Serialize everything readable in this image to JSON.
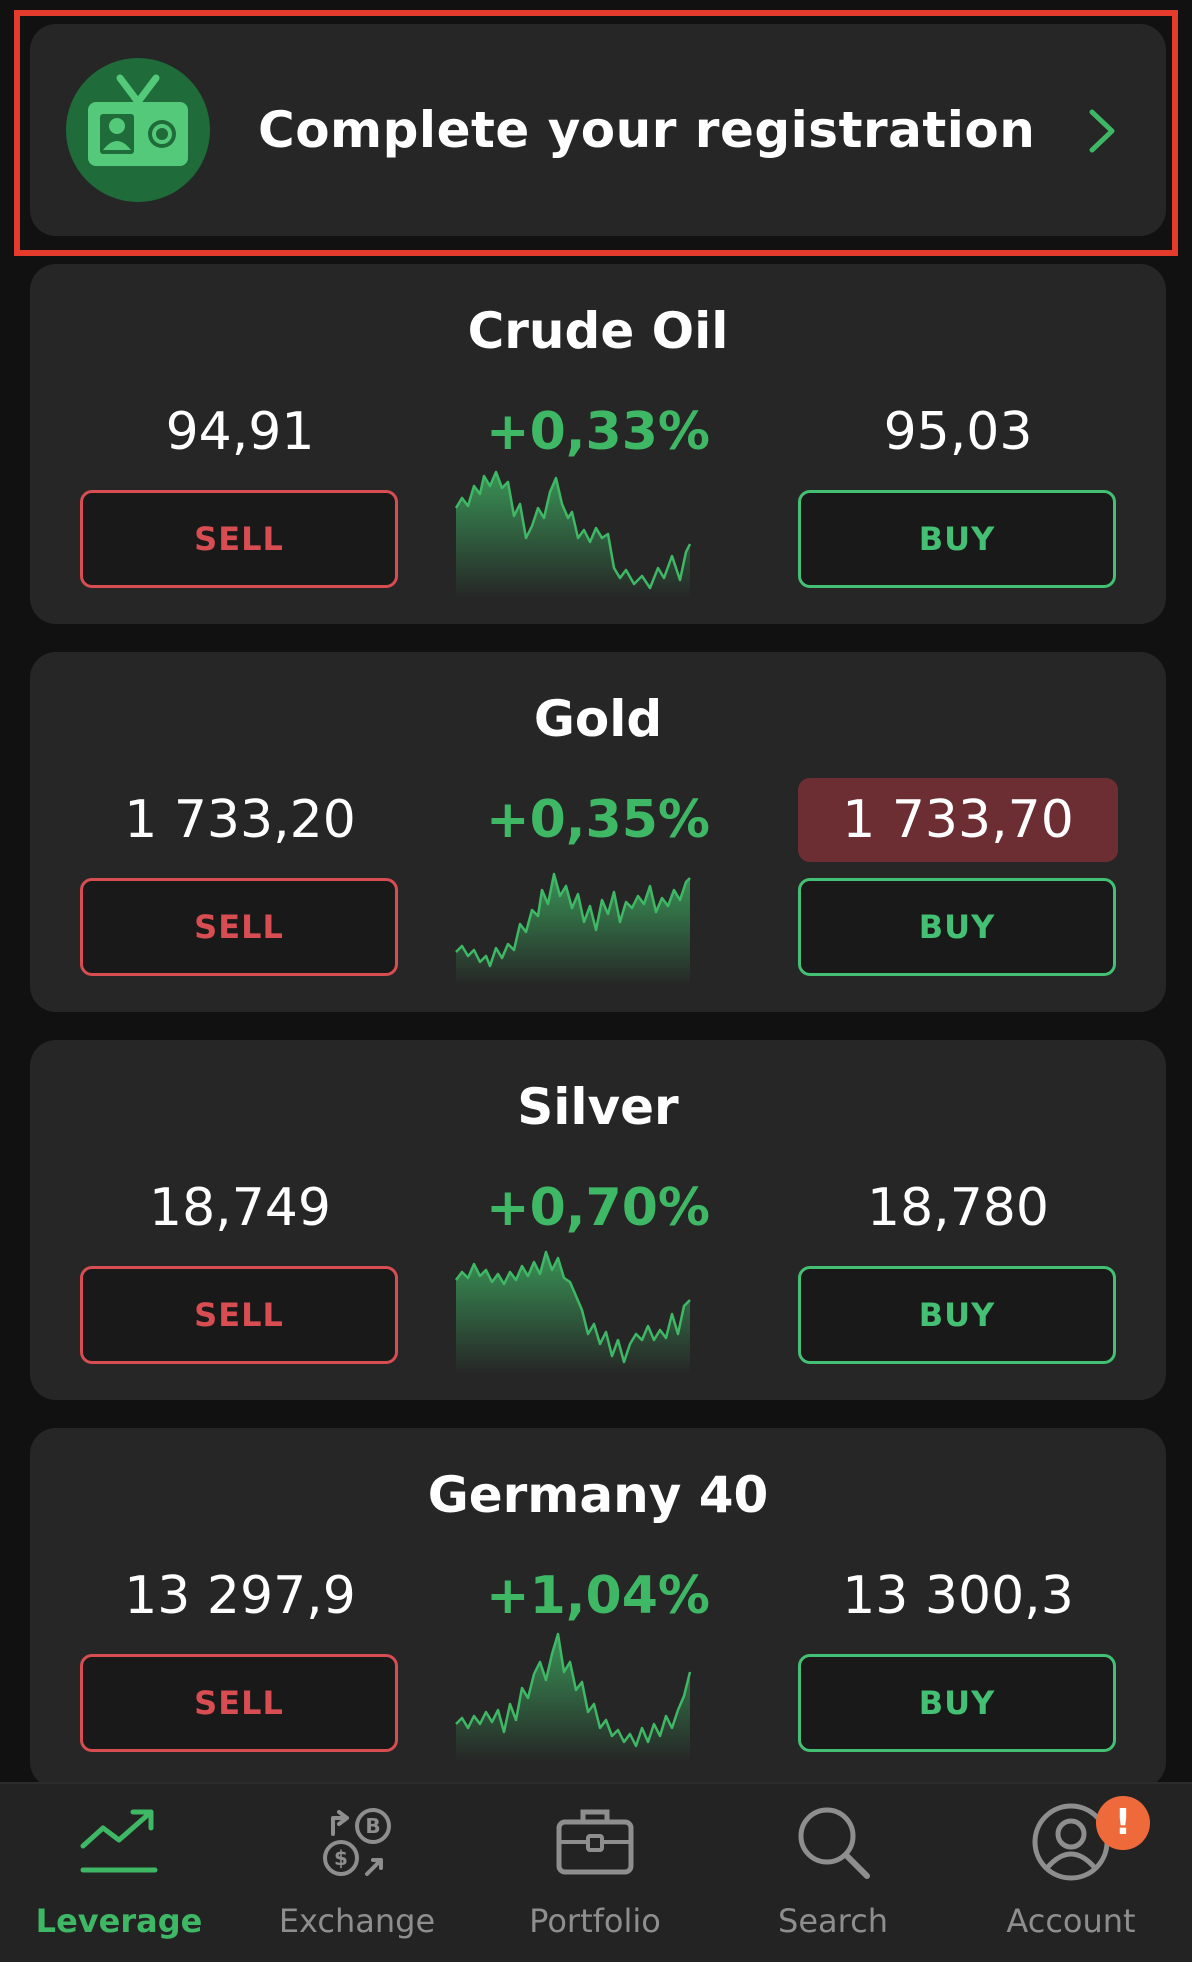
{
  "registration": {
    "title": "Complete your registration",
    "icon": "id-card-icon",
    "highlight_color": "#e43b2c"
  },
  "instruments": [
    {
      "name": "Crude Oil",
      "sell_price": "94,91",
      "buy_price": "95,03",
      "change": "+0,33%",
      "sell_label": "SELL",
      "buy_label": "BUY",
      "buy_price_highlighted": false
    },
    {
      "name": "Gold",
      "sell_price": "1 733,20",
      "buy_price": "1 733,70",
      "change": "+0,35%",
      "sell_label": "SELL",
      "buy_label": "BUY",
      "buy_price_highlighted": true
    },
    {
      "name": "Silver",
      "sell_price": "18,749",
      "buy_price": "18,780",
      "change": "+0,70%",
      "sell_label": "SELL",
      "buy_label": "BUY",
      "buy_price_highlighted": false
    },
    {
      "name": "Germany 40",
      "sell_price": "13 297,9",
      "buy_price": "13 300,3",
      "change": "+1,04%",
      "sell_label": "SELL",
      "buy_label": "BUY",
      "buy_price_highlighted": false
    }
  ],
  "nav": {
    "items": [
      {
        "label": "Leverage",
        "icon": "trend-up-icon",
        "active": true
      },
      {
        "label": "Exchange",
        "icon": "exchange-icon",
        "active": false
      },
      {
        "label": "Portfolio",
        "icon": "briefcase-icon",
        "active": false
      },
      {
        "label": "Search",
        "icon": "search-icon",
        "active": false
      },
      {
        "label": "Account",
        "icon": "account-icon",
        "active": false
      }
    ],
    "account_badge": "!"
  },
  "colors": {
    "background": "#111111",
    "card": "#262626",
    "positive": "#3fb866",
    "sell": "#d84d52",
    "buy": "#43c073",
    "buy_flash": "#6c2d33",
    "badge": "#ef6a3a"
  }
}
